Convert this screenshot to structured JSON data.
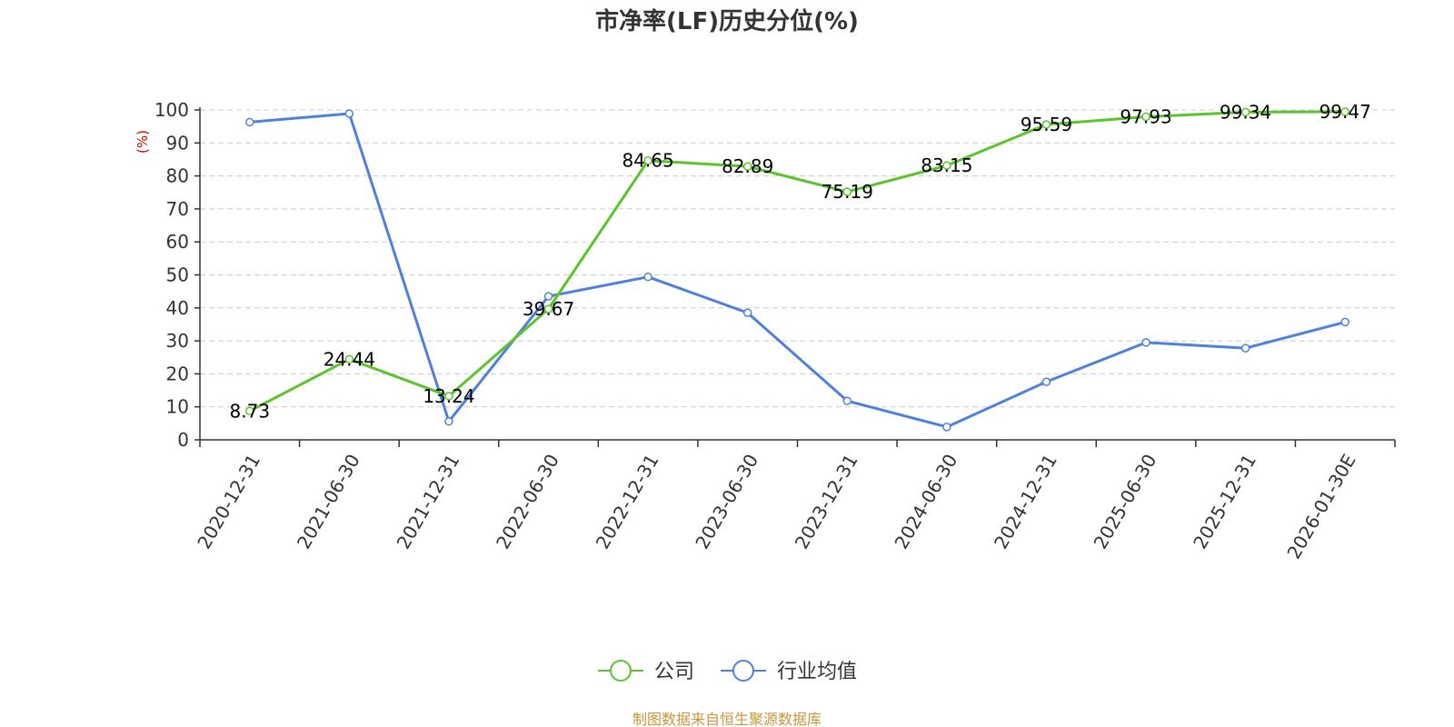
{
  "chart_data": {
    "type": "line",
    "title": "市净率(LF)历史分位(%)",
    "ylabel": "(%)",
    "xlabel": "",
    "ylim": [
      0,
      100
    ],
    "yticks": [
      0,
      10,
      20,
      30,
      40,
      50,
      60,
      70,
      80,
      90,
      100
    ],
    "grid": true,
    "legend_position": "bottom",
    "categories": [
      "2020-12-31",
      "2021-06-30",
      "2021-12-31",
      "2022-06-30",
      "2022-12-31",
      "2023-06-30",
      "2023-12-31",
      "2024-06-30",
      "2024-12-31",
      "2025-06-30",
      "2025-12-31",
      "2026-01-30E"
    ],
    "series": [
      {
        "name": "公司",
        "color": "#5bc42b",
        "values": [
          8.73,
          24.44,
          13.24,
          39.67,
          84.65,
          82.89,
          75.19,
          83.15,
          95.59,
          97.93,
          99.34,
          99.47
        ],
        "labels": [
          "8.73",
          "24.44",
          "13.24",
          "39.67",
          "84.65",
          "82.89",
          "75.19",
          "83.15",
          "95.59",
          "97.93",
          "99.34",
          "99.47"
        ]
      },
      {
        "name": "行业均值",
        "color": "#4f81dc",
        "values": [
          96.3,
          98.9,
          5.6,
          43.5,
          49.4,
          38.5,
          11.8,
          3.9,
          17.6,
          29.5,
          27.8,
          35.7
        ]
      }
    ]
  },
  "source_text": "制图数据来自恒生聚源数据库",
  "colors": {
    "ylabel": "#dd0000",
    "source": "#c9963a",
    "grid": "#cccccc",
    "axis": "#333333"
  }
}
